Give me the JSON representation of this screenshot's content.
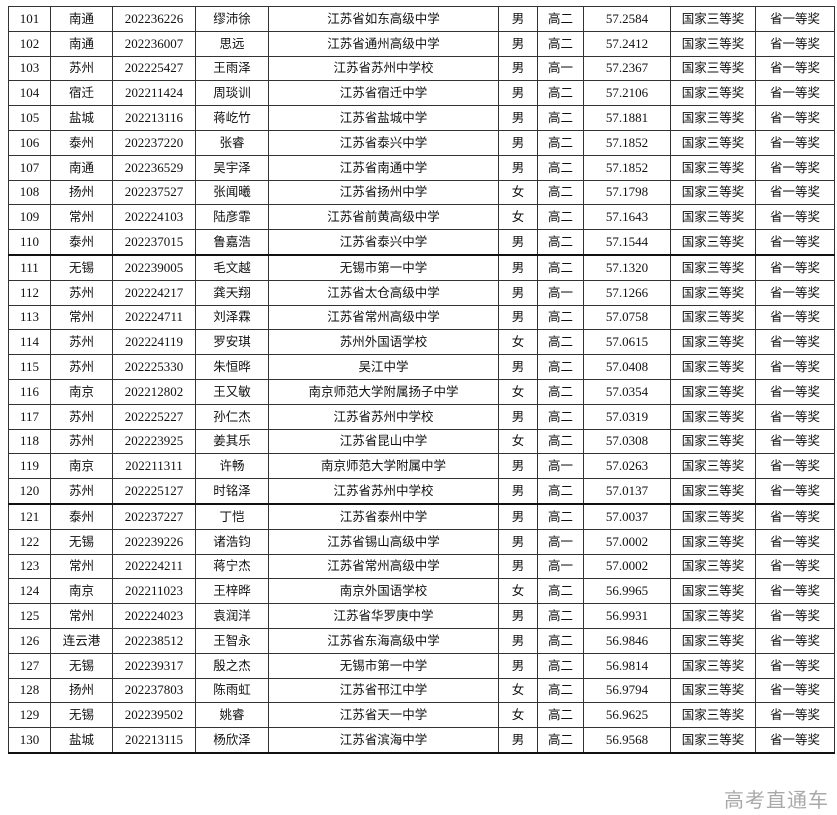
{
  "rows": [
    [
      "101",
      "南通",
      "202236226",
      "缪沛徐",
      "江苏省如东高级中学",
      "男",
      "高二",
      "57.2584",
      "国家三等奖",
      "省一等奖"
    ],
    [
      "102",
      "南通",
      "202236007",
      "思远",
      "江苏省通州高级中学",
      "男",
      "高二",
      "57.2412",
      "国家三等奖",
      "省一等奖"
    ],
    [
      "103",
      "苏州",
      "202225427",
      "王雨泽",
      "江苏省苏州中学校",
      "男",
      "高一",
      "57.2367",
      "国家三等奖",
      "省一等奖"
    ],
    [
      "104",
      "宿迁",
      "202211424",
      "周琰训",
      "江苏省宿迁中学",
      "男",
      "高二",
      "57.2106",
      "国家三等奖",
      "省一等奖"
    ],
    [
      "105",
      "盐城",
      "202213116",
      "蒋屹竹",
      "江苏省盐城中学",
      "男",
      "高二",
      "57.1881",
      "国家三等奖",
      "省一等奖"
    ],
    [
      "106",
      "泰州",
      "202237220",
      "张睿",
      "江苏省泰兴中学",
      "男",
      "高二",
      "57.1852",
      "国家三等奖",
      "省一等奖"
    ],
    [
      "107",
      "南通",
      "202236529",
      "吴宇泽",
      "江苏省南通中学",
      "男",
      "高二",
      "57.1852",
      "国家三等奖",
      "省一等奖"
    ],
    [
      "108",
      "扬州",
      "202237527",
      "张闻曦",
      "江苏省扬州中学",
      "女",
      "高二",
      "57.1798",
      "国家三等奖",
      "省一等奖"
    ],
    [
      "109",
      "常州",
      "202224103",
      "陆彦霏",
      "江苏省前黄高级中学",
      "女",
      "高二",
      "57.1643",
      "国家三等奖",
      "省一等奖"
    ],
    [
      "110",
      "泰州",
      "202237015",
      "鲁嘉浩",
      "江苏省泰兴中学",
      "男",
      "高二",
      "57.1544",
      "国家三等奖",
      "省一等奖"
    ],
    [
      "111",
      "无锡",
      "202239005",
      "毛文越",
      "无锡市第一中学",
      "男",
      "高二",
      "57.1320",
      "国家三等奖",
      "省一等奖"
    ],
    [
      "112",
      "苏州",
      "202224217",
      "龚天翔",
      "江苏省太仓高级中学",
      "男",
      "高一",
      "57.1266",
      "国家三等奖",
      "省一等奖"
    ],
    [
      "113",
      "常州",
      "202224711",
      "刘泽霖",
      "江苏省常州高级中学",
      "男",
      "高二",
      "57.0758",
      "国家三等奖",
      "省一等奖"
    ],
    [
      "114",
      "苏州",
      "202224119",
      "罗安琪",
      "苏州外国语学校",
      "女",
      "高二",
      "57.0615",
      "国家三等奖",
      "省一等奖"
    ],
    [
      "115",
      "苏州",
      "202225330",
      "朱恒晔",
      "吴江中学",
      "男",
      "高二",
      "57.0408",
      "国家三等奖",
      "省一等奖"
    ],
    [
      "116",
      "南京",
      "202212802",
      "王又敏",
      "南京师范大学附属扬子中学",
      "女",
      "高二",
      "57.0354",
      "国家三等奖",
      "省一等奖"
    ],
    [
      "117",
      "苏州",
      "202225227",
      "孙仁杰",
      "江苏省苏州中学校",
      "男",
      "高二",
      "57.0319",
      "国家三等奖",
      "省一等奖"
    ],
    [
      "118",
      "苏州",
      "202223925",
      "姜其乐",
      "江苏省昆山中学",
      "女",
      "高二",
      "57.0308",
      "国家三等奖",
      "省一等奖"
    ],
    [
      "119",
      "南京",
      "202211311",
      "许畅",
      "南京师范大学附属中学",
      "男",
      "高一",
      "57.0263",
      "国家三等奖",
      "省一等奖"
    ],
    [
      "120",
      "苏州",
      "202225127",
      "时铭泽",
      "江苏省苏州中学校",
      "男",
      "高二",
      "57.0137",
      "国家三等奖",
      "省一等奖"
    ],
    [
      "121",
      "泰州",
      "202237227",
      "丁恺",
      "江苏省泰州中学",
      "男",
      "高二",
      "57.0037",
      "国家三等奖",
      "省一等奖"
    ],
    [
      "122",
      "无锡",
      "202239226",
      "诸浩钧",
      "江苏省锡山高级中学",
      "男",
      "高一",
      "57.0002",
      "国家三等奖",
      "省一等奖"
    ],
    [
      "123",
      "常州",
      "202224211",
      "蒋宁杰",
      "江苏省常州高级中学",
      "男",
      "高一",
      "57.0002",
      "国家三等奖",
      "省一等奖"
    ],
    [
      "124",
      "南京",
      "202211023",
      "王梓晔",
      "南京外国语学校",
      "女",
      "高二",
      "56.9965",
      "国家三等奖",
      "省一等奖"
    ],
    [
      "125",
      "常州",
      "202224023",
      "袁润洋",
      "江苏省华罗庚中学",
      "男",
      "高二",
      "56.9931",
      "国家三等奖",
      "省一等奖"
    ],
    [
      "126",
      "连云港",
      "202238512",
      "王智永",
      "江苏省东海高级中学",
      "男",
      "高二",
      "56.9846",
      "国家三等奖",
      "省一等奖"
    ],
    [
      "127",
      "无锡",
      "202239317",
      "殷之杰",
      "无锡市第一中学",
      "男",
      "高二",
      "56.9814",
      "国家三等奖",
      "省一等奖"
    ],
    [
      "128",
      "扬州",
      "202237803",
      "陈雨虹",
      "江苏省邗江中学",
      "女",
      "高二",
      "56.9794",
      "国家三等奖",
      "省一等奖"
    ],
    [
      "129",
      "无锡",
      "202239502",
      "姚睿",
      "江苏省天一中学",
      "女",
      "高二",
      "56.9625",
      "国家三等奖",
      "省一等奖"
    ],
    [
      "130",
      "盐城",
      "202213115",
      "杨欣泽",
      "江苏省滨海中学",
      "男",
      "高二",
      "56.9568",
      "国家三等奖",
      "省一等奖"
    ]
  ],
  "watermark": "高考直通车"
}
